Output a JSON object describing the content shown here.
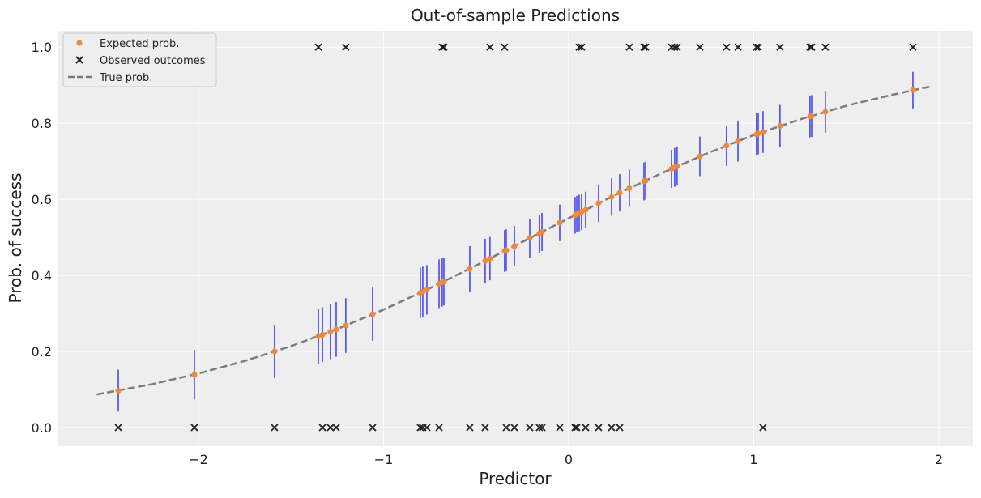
{
  "chart_data": {
    "type": "scatter",
    "title": "Out-of-sample Predictions",
    "xlabel": "Predictor",
    "ylabel": "Prob. of success",
    "xlim": [
      -2.757,
      2.184
    ],
    "ylim": [
      -0.049,
      1.043
    ],
    "xticks": [
      -2,
      -1,
      0,
      1,
      2
    ],
    "xtick_labels": [
      "−2",
      "−1",
      "0",
      "1",
      "2"
    ],
    "yticks": [
      0,
      0.2,
      0.4,
      0.6,
      0.8,
      1.0
    ],
    "ytick_labels": [
      "0.0",
      "0.2",
      "0.4",
      "0.6",
      "0.8",
      "1.0"
    ],
    "grid": true,
    "legend_position": "top-left",
    "legend": [
      "Expected prob.",
      "Observed outcomes",
      "True prob."
    ],
    "colors": {
      "expected": "#f0883a",
      "interval": "#4a4af0",
      "observed": "#222222",
      "true": "#7a7a82",
      "background": "#eeeeee"
    },
    "series": [
      {
        "name": "Expected prob.",
        "marker": "circle",
        "x": [
          -2.433,
          -2.022,
          -1.589,
          -1.352,
          -1.33,
          -1.287,
          -1.256,
          -1.204,
          -1.059,
          -0.801,
          -0.788,
          -0.766,
          -0.7,
          -0.683,
          -0.674,
          -0.534,
          -0.451,
          -0.425,
          -0.346,
          -0.337,
          -0.293,
          -0.21,
          -0.158,
          -0.144,
          -0.048,
          0.035,
          0.044,
          0.057,
          0.07,
          0.092,
          0.162,
          0.232,
          0.276,
          0.328,
          0.407,
          0.416,
          0.556,
          0.573,
          0.586,
          0.709,
          0.853,
          0.915,
          1.015,
          1.024,
          1.05,
          1.142,
          1.304,
          1.313,
          1.387,
          1.86
        ],
        "y": [
          0.097,
          0.139,
          0.2,
          0.24,
          0.244,
          0.252,
          0.258,
          0.268,
          0.298,
          0.354,
          0.357,
          0.362,
          0.378,
          0.382,
          0.384,
          0.417,
          0.438,
          0.444,
          0.464,
          0.466,
          0.477,
          0.498,
          0.51,
          0.514,
          0.538,
          0.558,
          0.561,
          0.564,
          0.567,
          0.572,
          0.59,
          0.606,
          0.617,
          0.629,
          0.647,
          0.649,
          0.68,
          0.684,
          0.687,
          0.713,
          0.741,
          0.753,
          0.771,
          0.773,
          0.777,
          0.793,
          0.818,
          0.819,
          0.83,
          0.887
        ],
        "interval_halfwidth": [
          0.055,
          0.065,
          0.07,
          0.072,
          0.072,
          0.072,
          0.072,
          0.072,
          0.07,
          0.066,
          0.066,
          0.065,
          0.064,
          0.064,
          0.063,
          0.06,
          0.058,
          0.057,
          0.055,
          0.055,
          0.053,
          0.051,
          0.05,
          0.05,
          0.048,
          0.048,
          0.048,
          0.048,
          0.048,
          0.048,
          0.049,
          0.049,
          0.049,
          0.049,
          0.05,
          0.05,
          0.05,
          0.051,
          0.051,
          0.052,
          0.053,
          0.054,
          0.055,
          0.055,
          0.055,
          0.055,
          0.055,
          0.055,
          0.055,
          0.048
        ]
      },
      {
        "name": "Observed outcomes",
        "marker": "x",
        "x": [
          -2.433,
          -2.022,
          -1.589,
          -1.352,
          -1.33,
          -1.287,
          -1.256,
          -1.204,
          -1.059,
          -0.801,
          -0.788,
          -0.766,
          -0.7,
          -0.683,
          -0.674,
          -0.534,
          -0.451,
          -0.425,
          -0.346,
          -0.337,
          -0.293,
          -0.21,
          -0.158,
          -0.144,
          -0.048,
          0.035,
          0.044,
          0.057,
          0.07,
          0.092,
          0.162,
          0.232,
          0.276,
          0.328,
          0.407,
          0.416,
          0.556,
          0.573,
          0.586,
          0.709,
          0.853,
          0.915,
          1.015,
          1.024,
          1.05,
          1.142,
          1.304,
          1.313,
          1.387,
          1.86
        ],
        "y": [
          0,
          0,
          0,
          1,
          0,
          0,
          0,
          1,
          0,
          0,
          0,
          0,
          0,
          1,
          1,
          0,
          0,
          1,
          1,
          0,
          0,
          0,
          0,
          0,
          0,
          0,
          0,
          1,
          1,
          0,
          0,
          0,
          0,
          1,
          1,
          1,
          1,
          1,
          1,
          1,
          1,
          1,
          1,
          1,
          0,
          1,
          1,
          1,
          1,
          1
        ]
      },
      {
        "name": "True prob.",
        "style": "dashed-line",
        "x": [
          -2.55,
          -2.25,
          -2.0,
          -1.75,
          -1.5,
          -1.25,
          -1.0,
          -0.75,
          -0.5,
          -0.25,
          0,
          0.25,
          0.5,
          0.75,
          1.0,
          1.25,
          1.5,
          1.75,
          1.95
        ],
        "y": [
          0.087,
          0.114,
          0.142,
          0.175,
          0.214,
          0.259,
          0.31,
          0.366,
          0.426,
          0.488,
          0.55,
          0.611,
          0.668,
          0.721,
          0.769,
          0.81,
          0.846,
          0.875,
          0.896
        ]
      }
    ]
  }
}
